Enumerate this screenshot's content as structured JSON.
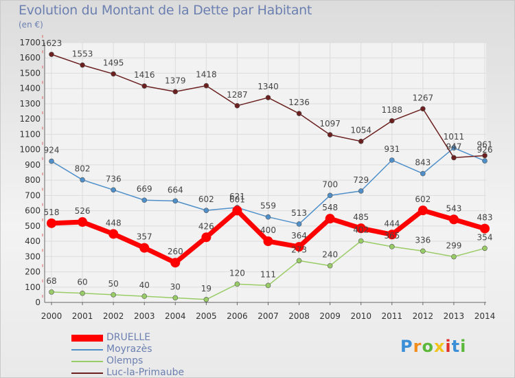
{
  "title": "Evolution du Montant de la Dette par Habitant",
  "unit": "(en €)",
  "logo": "Proxiti",
  "chart_data": {
    "type": "line",
    "title": "Evolution du Montant de la Dette par Habitant",
    "ylabel": "(en €)",
    "ylim": [
      0,
      1700
    ],
    "yticks": [
      0,
      100,
      200,
      300,
      400,
      500,
      600,
      700,
      800,
      900,
      1000,
      1100,
      1200,
      1300,
      1400,
      1500,
      1600,
      1700
    ],
    "x": [
      "2000",
      "2001",
      "2002",
      "2003",
      "2004",
      "2005",
      "2006",
      "2007",
      "2008",
      "2009",
      "2010",
      "2011",
      "2012",
      "2013",
      "2014"
    ],
    "grid": true,
    "legend": "bottom-left",
    "series": [
      {
        "name": "DRUELLE",
        "color": "#ff0000",
        "values": [
          518,
          526,
          448,
          357,
          260,
          426,
          601,
          400,
          364,
          548,
          485,
          444,
          602,
          543,
          483
        ]
      },
      {
        "name": "Moyrazès",
        "color": "#4f8fc9",
        "values": [
          924,
          802,
          736,
          669,
          664,
          602,
          621,
          559,
          513,
          700,
          729,
          931,
          843,
          1011,
          926
        ]
      },
      {
        "name": "Olemps",
        "color": "#99cc66",
        "values": [
          68,
          60,
          50,
          40,
          30,
          19,
          120,
          111,
          273,
          240,
          402,
          365,
          336,
          299,
          354
        ]
      },
      {
        "name": "Luc-la-Primaube",
        "color": "#6b1f1f",
        "values": [
          1623,
          1553,
          1495,
          1416,
          1379,
          1418,
          1287,
          1340,
          1236,
          1097,
          1054,
          1188,
          1267,
          947,
          961
        ]
      }
    ]
  }
}
